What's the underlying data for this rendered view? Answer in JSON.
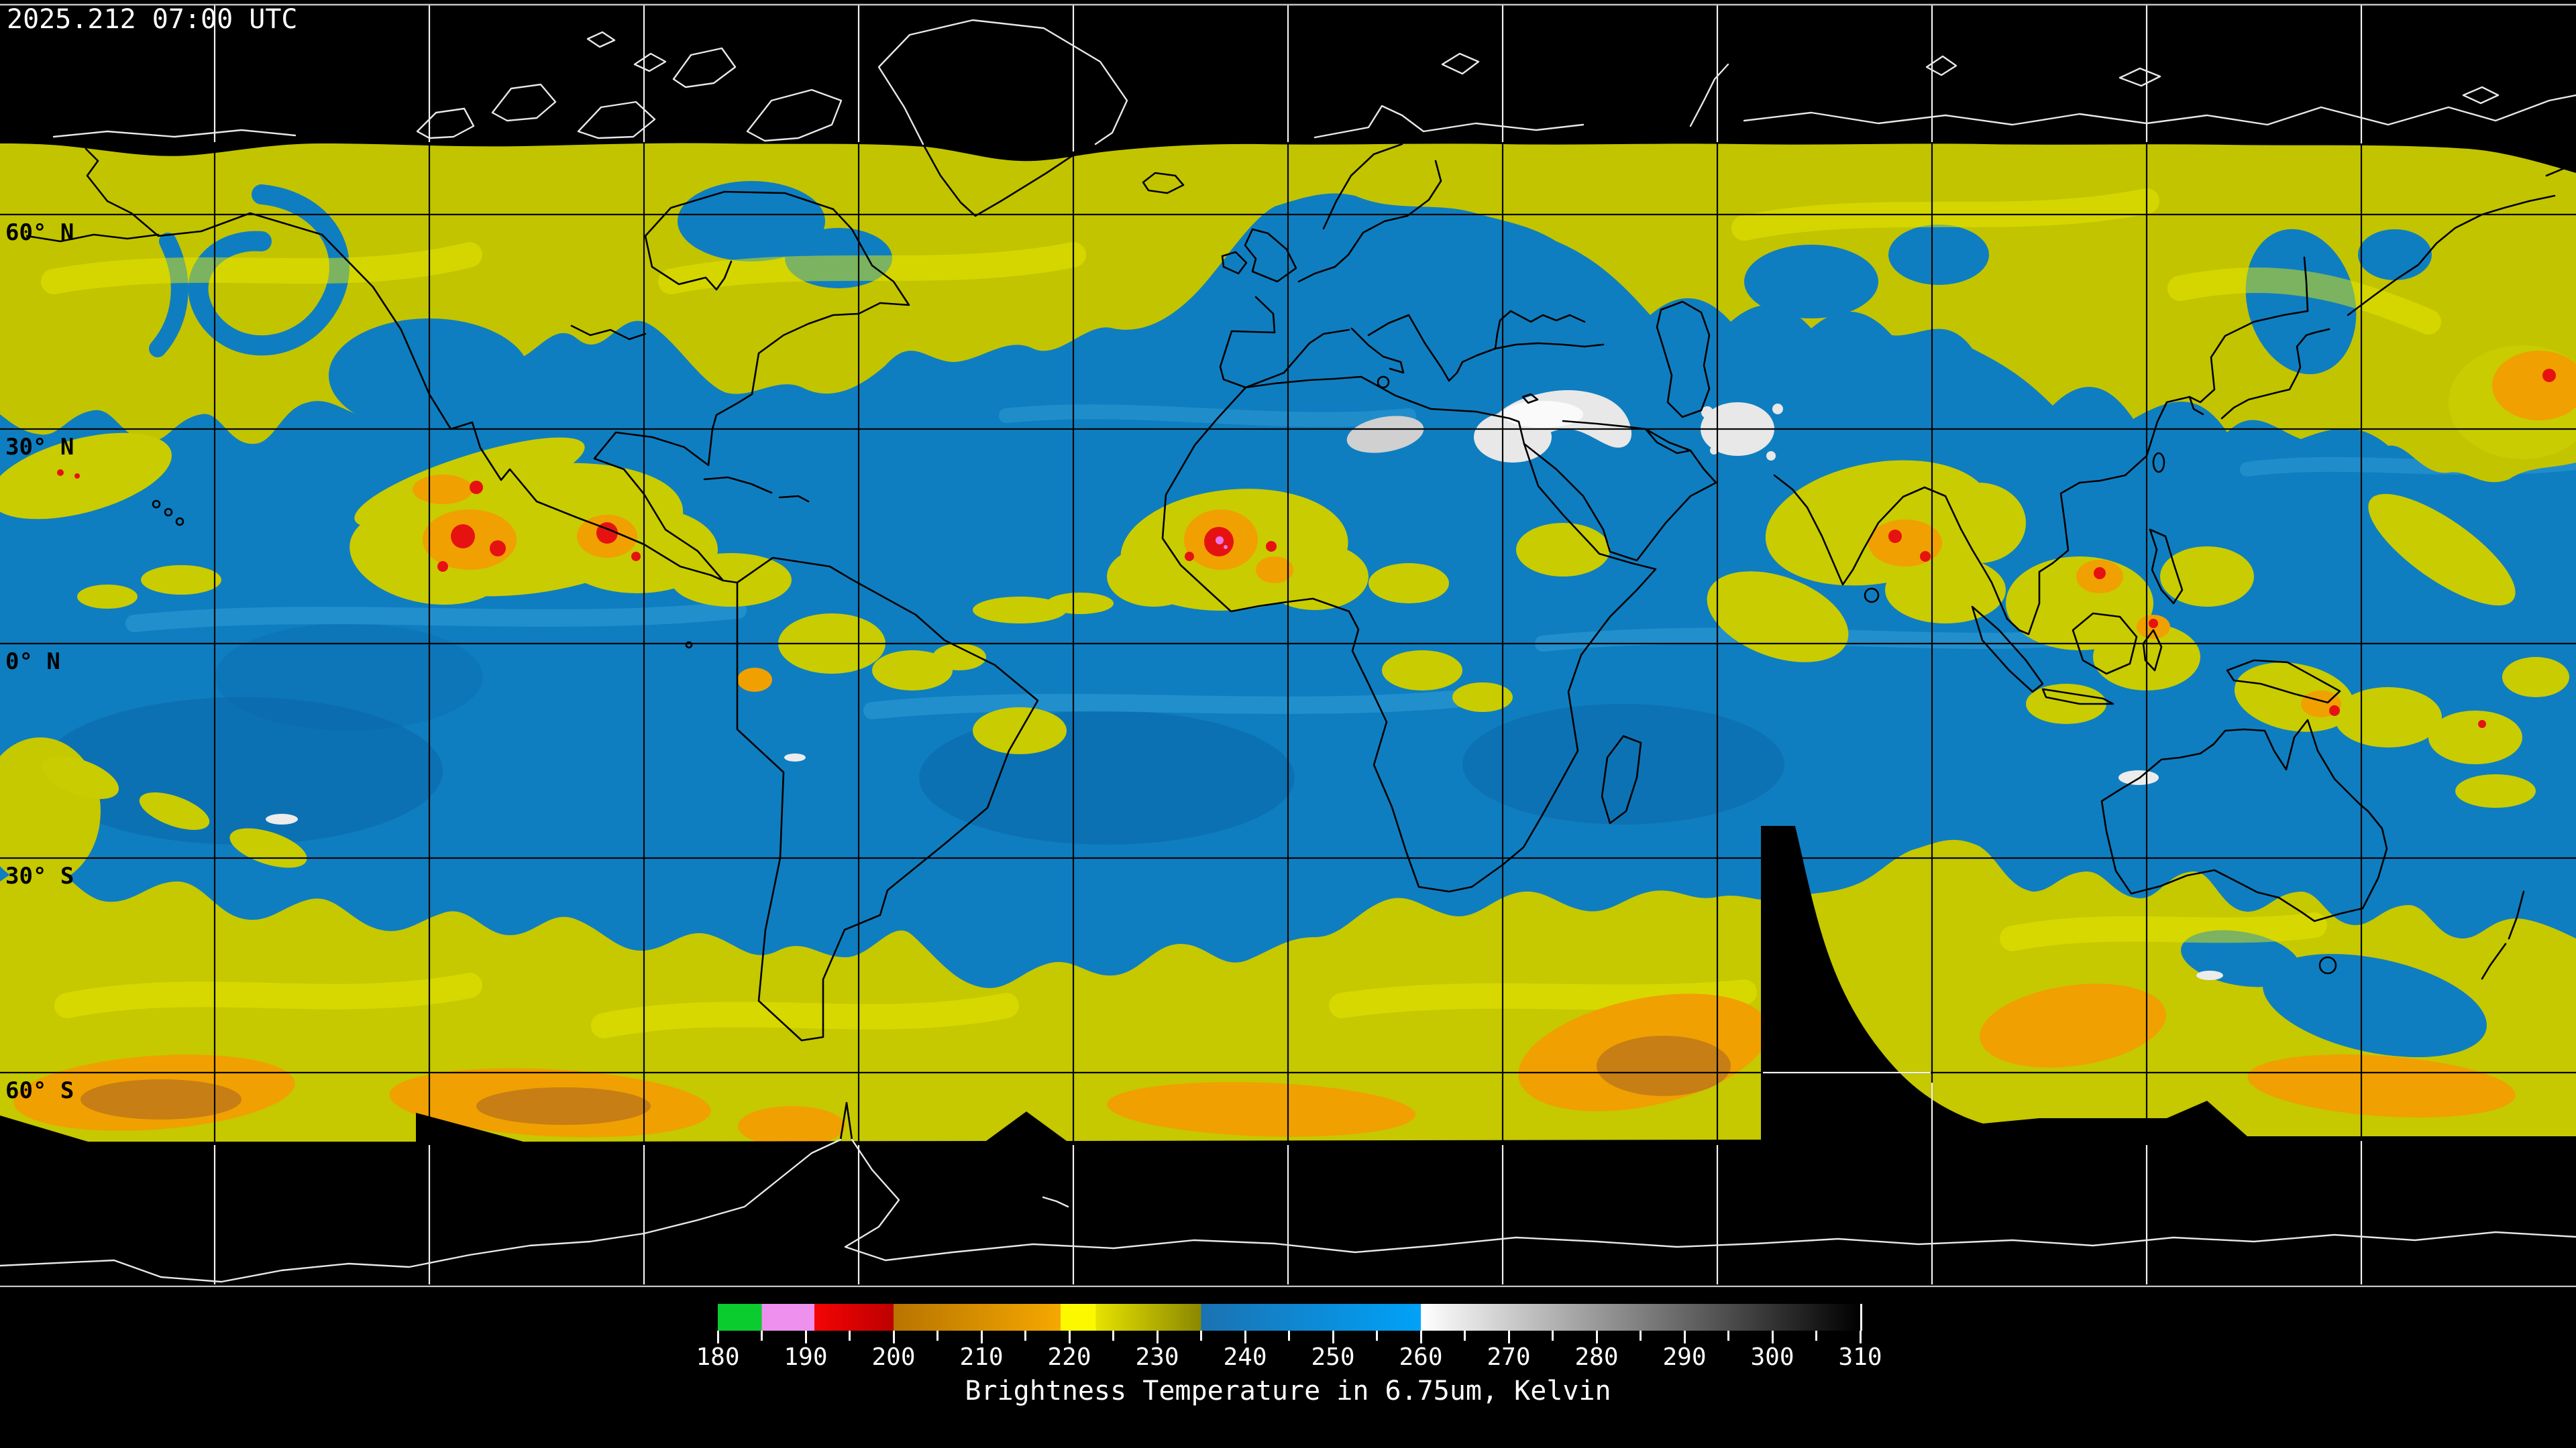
{
  "header": {
    "timestamp": "2025.212 07:00 UTC"
  },
  "map": {
    "latitude_labels": [
      "60° N",
      "30° N",
      "0° N",
      "30° S",
      "60° S"
    ]
  },
  "legend": {
    "caption": "Brightness Temperature in 6.75um, Kelvin",
    "ticks": [
      "180",
      "190",
      "200",
      "210",
      "220",
      "230",
      "240",
      "250",
      "260",
      "270",
      "280",
      "290",
      "300",
      "310"
    ],
    "range": {
      "min": 180,
      "max": 310,
      "minor_step": 5,
      "major_step": 10
    },
    "segments": [
      {
        "from": 180,
        "to": 185,
        "color": "#0ACC2E"
      },
      {
        "from": 185,
        "to": 191,
        "color": "#EE90EE"
      },
      {
        "from": 191,
        "to": 200,
        "color": "#F40404",
        "color_end": "#BE0000"
      },
      {
        "from": 200,
        "to": 219,
        "color": "#B87400",
        "color_end": "#F5A800"
      },
      {
        "from": 219,
        "to": 223,
        "color": "#FCF800"
      },
      {
        "from": 223,
        "to": 235,
        "color": "#E6E200",
        "color_end": "#8A8800"
      },
      {
        "from": 235,
        "to": 260,
        "color": "#1B72B2",
        "color_end": "#00A2F8"
      },
      {
        "from": 260,
        "to": 310,
        "color": "#FFFFFF",
        "color_end": "#000000"
      }
    ]
  },
  "colors": {
    "background": "#000000",
    "ocean_moist_blue": "#0F7EC0",
    "cloud_yellow": "#C2C400",
    "cold_cloud_orange": "#F0A000",
    "coldest_cloud_red": "#E61212",
    "warm_dry_white": "#E8E8E8",
    "grid_on_data": "#000000",
    "grid_on_void": "#FFFFFF",
    "text": "#FFFFFF"
  }
}
